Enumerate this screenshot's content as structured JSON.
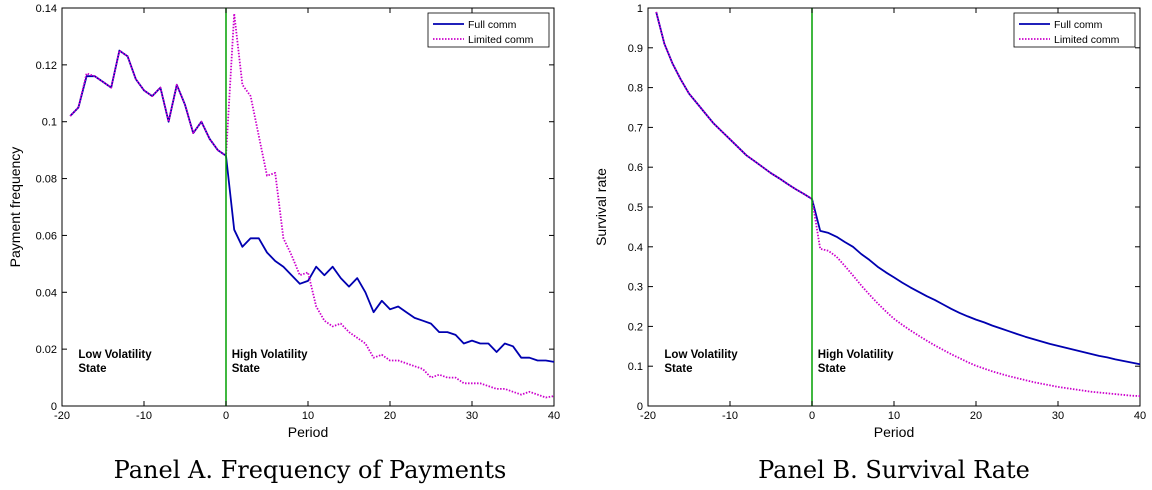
{
  "chart_data": [
    {
      "type": "line",
      "caption": "Panel A. Frequency of Payments",
      "xlabel": "Period",
      "ylabel": "Payment frequency",
      "xlim": [
        -20,
        40
      ],
      "ylim": [
        0,
        0.14
      ],
      "xticks": [
        -20,
        -10,
        0,
        10,
        20,
        30,
        40
      ],
      "xtick_labels": [
        "-20",
        "-10",
        "0",
        "10",
        "20",
        "30",
        "40"
      ],
      "yticks": [
        0,
        0.02,
        0.04,
        0.06,
        0.08,
        0.1,
        0.12,
        0.14
      ],
      "ytick_labels": [
        "0",
        "0.02",
        "0.04",
        "0.06",
        "0.08",
        "0.1",
        "0.12",
        "0.14"
      ],
      "grid": false,
      "legend_position": "top-right",
      "vline": {
        "x": 0,
        "color": "#00a000"
      },
      "annotations": [
        {
          "lines": [
            "Low Volatility",
            "State"
          ],
          "x": -18,
          "y": 0.012
        },
        {
          "lines": [
            "High Volatility",
            "State"
          ],
          "x": 0.7,
          "y": 0.012
        }
      ],
      "series": [
        {
          "name": "Full comm",
          "color": "#0000b0",
          "style": "solid",
          "x": [
            -19,
            -18,
            -17,
            -16,
            -15,
            -14,
            -13,
            -12,
            -11,
            -10,
            -9,
            -8,
            -7,
            -6,
            -5,
            -4,
            -3,
            -2,
            -1,
            0,
            1,
            2,
            3,
            4,
            5,
            6,
            7,
            8,
            9,
            10,
            11,
            12,
            13,
            14,
            15,
            16,
            17,
            18,
            19,
            20,
            21,
            22,
            23,
            24,
            25,
            26,
            27,
            28,
            29,
            30,
            31,
            32,
            33,
            34,
            35,
            36,
            37,
            38,
            39,
            40
          ],
          "y": [
            0.102,
            0.105,
            0.116,
            0.116,
            0.114,
            0.112,
            0.125,
            0.123,
            0.115,
            0.111,
            0.109,
            0.112,
            0.1,
            0.113,
            0.106,
            0.096,
            0.1,
            0.094,
            0.09,
            0.088,
            0.062,
            0.056,
            0.059,
            0.059,
            0.054,
            0.051,
            0.049,
            0.046,
            0.043,
            0.044,
            0.049,
            0.046,
            0.049,
            0.045,
            0.042,
            0.045,
            0.04,
            0.033,
            0.037,
            0.034,
            0.035,
            0.033,
            0.031,
            0.03,
            0.029,
            0.026,
            0.026,
            0.025,
            0.022,
            0.023,
            0.022,
            0.022,
            0.019,
            0.022,
            0.021,
            0.017,
            0.017,
            0.016,
            0.016,
            0.0155
          ]
        },
        {
          "name": "Limited comm",
          "color": "#cc00cc",
          "style": "dotted",
          "x": [
            -19,
            -18,
            -17,
            -16,
            -15,
            -14,
            -13,
            -12,
            -11,
            -10,
            -9,
            -8,
            -7,
            -6,
            -5,
            -4,
            -3,
            -2,
            -1,
            0,
            1,
            2,
            3,
            4,
            5,
            6,
            7,
            8,
            9,
            10,
            11,
            12,
            13,
            14,
            15,
            16,
            17,
            18,
            19,
            20,
            21,
            22,
            23,
            24,
            25,
            26,
            27,
            28,
            29,
            30,
            31,
            32,
            33,
            34,
            35,
            36,
            37,
            38,
            39,
            40
          ],
          "y": [
            0.102,
            0.105,
            0.117,
            0.116,
            0.114,
            0.112,
            0.125,
            0.123,
            0.115,
            0.111,
            0.109,
            0.112,
            0.1,
            0.113,
            0.106,
            0.096,
            0.1,
            0.094,
            0.09,
            0.088,
            0.138,
            0.113,
            0.109,
            0.095,
            0.081,
            0.082,
            0.059,
            0.053,
            0.046,
            0.047,
            0.035,
            0.03,
            0.028,
            0.029,
            0.026,
            0.024,
            0.022,
            0.017,
            0.018,
            0.016,
            0.016,
            0.015,
            0.014,
            0.013,
            0.01,
            0.011,
            0.01,
            0.01,
            0.008,
            0.008,
            0.008,
            0.007,
            0.006,
            0.006,
            0.005,
            0.004,
            0.005,
            0.004,
            0.003,
            0.0035
          ]
        }
      ]
    },
    {
      "type": "line",
      "caption": "Panel B. Survival Rate",
      "xlabel": "Period",
      "ylabel": "Survival rate",
      "xlim": [
        -20,
        40
      ],
      "ylim": [
        0,
        1
      ],
      "xticks": [
        -20,
        -10,
        0,
        10,
        20,
        30,
        40
      ],
      "xtick_labels": [
        "-20",
        "-10",
        "0",
        "10",
        "20",
        "30",
        "40"
      ],
      "yticks": [
        0,
        0.1,
        0.2,
        0.3,
        0.4,
        0.5,
        0.6,
        0.7,
        0.8,
        0.9,
        1
      ],
      "ytick_labels": [
        "0",
        "0.1",
        "0.2",
        "0.3",
        "0.4",
        "0.5",
        "0.6",
        "0.7",
        "0.8",
        "0.9",
        "1"
      ],
      "grid": false,
      "legend_position": "top-right",
      "vline": {
        "x": 0,
        "color": "#00a000"
      },
      "annotations": [
        {
          "lines": [
            "Low Volatility",
            "State"
          ],
          "x": -18,
          "y": 0.085
        },
        {
          "lines": [
            "High Volatility",
            "State"
          ],
          "x": 0.7,
          "y": 0.085
        }
      ],
      "series": [
        {
          "name": "Full comm",
          "color": "#0000b0",
          "style": "solid",
          "x": [
            -19,
            -18,
            -17,
            -16,
            -15,
            -14,
            -13,
            -12,
            -11,
            -10,
            -9,
            -8,
            -7,
            -6,
            -5,
            -4,
            -3,
            -2,
            -1,
            0,
            1,
            2,
            3,
            4,
            5,
            6,
            7,
            8,
            9,
            10,
            11,
            12,
            13,
            14,
            15,
            16,
            17,
            18,
            19,
            20,
            21,
            22,
            23,
            24,
            25,
            26,
            27,
            28,
            29,
            30,
            31,
            32,
            33,
            34,
            35,
            36,
            37,
            38,
            39,
            40
          ],
          "y": [
            0.99,
            0.91,
            0.86,
            0.82,
            0.785,
            0.76,
            0.735,
            0.71,
            0.69,
            0.67,
            0.65,
            0.63,
            0.615,
            0.6,
            0.585,
            0.572,
            0.558,
            0.545,
            0.533,
            0.52,
            0.44,
            0.435,
            0.425,
            0.412,
            0.4,
            0.382,
            0.367,
            0.35,
            0.336,
            0.323,
            0.31,
            0.298,
            0.287,
            0.276,
            0.266,
            0.255,
            0.244,
            0.234,
            0.225,
            0.217,
            0.21,
            0.202,
            0.195,
            0.188,
            0.181,
            0.174,
            0.168,
            0.162,
            0.156,
            0.151,
            0.146,
            0.141,
            0.136,
            0.131,
            0.126,
            0.122,
            0.117,
            0.113,
            0.109,
            0.105
          ]
        },
        {
          "name": "Limited comm",
          "color": "#cc00cc",
          "style": "dotted",
          "x": [
            -19,
            -18,
            -17,
            -16,
            -15,
            -14,
            -13,
            -12,
            -11,
            -10,
            -9,
            -8,
            -7,
            -6,
            -5,
            -4,
            -3,
            -2,
            -1,
            0,
            1,
            2,
            3,
            4,
            5,
            6,
            7,
            8,
            9,
            10,
            11,
            12,
            13,
            14,
            15,
            16,
            17,
            18,
            19,
            20,
            21,
            22,
            23,
            24,
            25,
            26,
            27,
            28,
            29,
            30,
            31,
            32,
            33,
            34,
            35,
            36,
            37,
            38,
            39,
            40
          ],
          "y": [
            0.99,
            0.91,
            0.86,
            0.82,
            0.785,
            0.76,
            0.735,
            0.71,
            0.69,
            0.67,
            0.65,
            0.63,
            0.615,
            0.6,
            0.585,
            0.572,
            0.558,
            0.545,
            0.533,
            0.52,
            0.395,
            0.39,
            0.375,
            0.352,
            0.328,
            0.303,
            0.28,
            0.258,
            0.238,
            0.219,
            0.204,
            0.19,
            0.177,
            0.164,
            0.152,
            0.141,
            0.13,
            0.12,
            0.11,
            0.101,
            0.094,
            0.087,
            0.081,
            0.075,
            0.07,
            0.065,
            0.06,
            0.056,
            0.052,
            0.048,
            0.045,
            0.042,
            0.039,
            0.036,
            0.034,
            0.032,
            0.03,
            0.028,
            0.026,
            0.025
          ]
        }
      ]
    }
  ]
}
